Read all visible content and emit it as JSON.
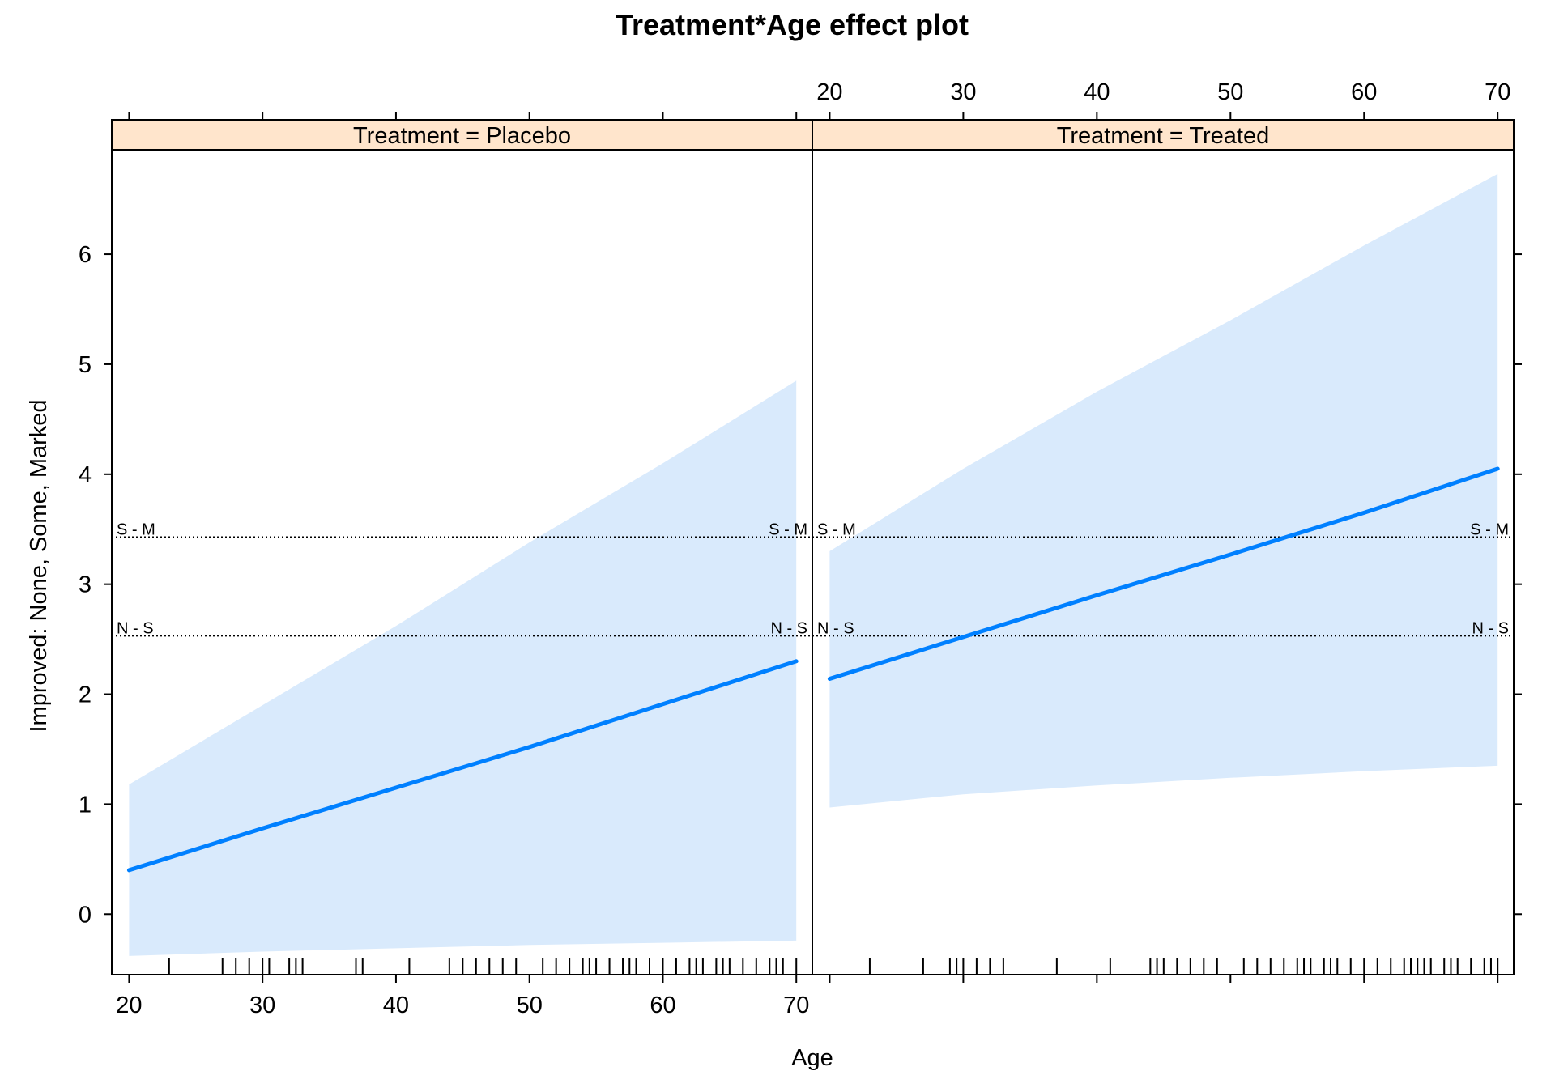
{
  "chart_data": {
    "type": "line",
    "title": "Treatment*Age effect plot",
    "xlabel": "Age",
    "ylabel": "Improved: None, Some, Marked",
    "xlim": [
      18.7,
      71.2
    ],
    "ylim": [
      -0.55,
      6.95
    ],
    "x_ticks": [
      20,
      30,
      40,
      50,
      60,
      70
    ],
    "y_ticks": [
      0,
      1,
      2,
      3,
      4,
      5,
      6
    ],
    "grid": false,
    "legend": "none",
    "colors": {
      "line": "#0080ff",
      "band": "#d9eafc",
      "strip": "#ffe5cc",
      "frame": "#000000"
    },
    "thresholds": [
      {
        "label": "S - M",
        "value": 3.43
      },
      {
        "label": "N - S",
        "value": 2.53
      }
    ],
    "panels": [
      {
        "strip": "Treatment = Placebo",
        "x": [
          20,
          30,
          40,
          50,
          60,
          70
        ],
        "fit": [
          0.4,
          0.78,
          1.15,
          1.52,
          1.91,
          2.3
        ],
        "lower": [
          -0.38,
          -0.34,
          -0.31,
          -0.28,
          -0.26,
          -0.24
        ],
        "upper": [
          1.18,
          1.9,
          2.62,
          3.38,
          4.1,
          4.85
        ],
        "rug": [
          23,
          27,
          28,
          29,
          30,
          30.5,
          32,
          32.5,
          33,
          37,
          37.5,
          41,
          44,
          45,
          46,
          47,
          48,
          49,
          51,
          52,
          53,
          54,
          54.5,
          55,
          56,
          57,
          57.5,
          58,
          59,
          60,
          61,
          62,
          62.5,
          63,
          64,
          64.5,
          65,
          66,
          67,
          68,
          68.5,
          69,
          70
        ]
      },
      {
        "strip": "Treatment = Treated",
        "x": [
          20,
          30,
          40,
          50,
          60,
          70
        ],
        "fit": [
          2.14,
          2.52,
          2.9,
          3.27,
          3.65,
          4.05
        ],
        "lower": [
          0.97,
          1.09,
          1.17,
          1.24,
          1.3,
          1.35
        ],
        "upper": [
          3.3,
          4.05,
          4.75,
          5.4,
          6.08,
          6.73
        ],
        "rug": [
          23,
          27,
          29,
          29.5,
          30,
          31,
          32,
          33,
          37,
          41,
          44,
          44.5,
          45,
          46,
          47,
          48,
          49,
          51,
          52,
          53,
          54,
          55,
          55.5,
          56,
          57,
          57.5,
          58,
          59,
          60,
          61,
          62,
          63,
          63.5,
          64,
          64.5,
          65,
          66,
          66.5,
          67,
          68,
          69,
          69.5,
          70
        ]
      }
    ]
  }
}
